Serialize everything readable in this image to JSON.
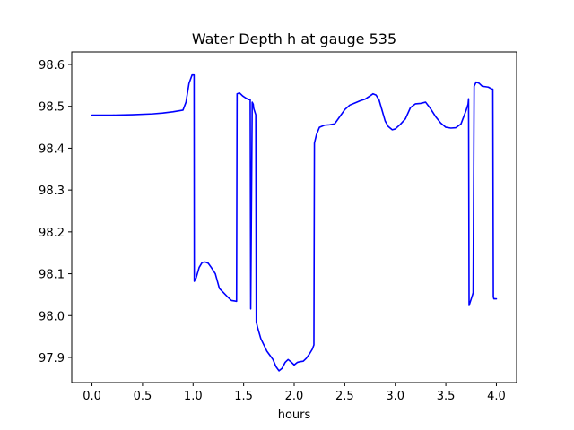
{
  "chart_data": {
    "type": "line",
    "title": "Water Depth h at gauge 535",
    "xlabel": "hours",
    "ylabel": "",
    "xlim": [
      -0.2,
      4.2
    ],
    "ylim": [
      97.84,
      98.63
    ],
    "xticks": [
      0.0,
      0.5,
      1.0,
      1.5,
      2.0,
      2.5,
      3.0,
      3.5,
      4.0
    ],
    "xtick_labels": [
      "0.0",
      "0.5",
      "1.0",
      "1.5",
      "2.0",
      "2.5",
      "3.0",
      "3.5",
      "4.0"
    ],
    "yticks": [
      97.9,
      98.0,
      98.1,
      98.2,
      98.3,
      98.4,
      98.5,
      98.6
    ],
    "ytick_labels": [
      "97.9",
      "98.0",
      "98.1",
      "98.2",
      "98.3",
      "98.4",
      "98.5",
      "98.6"
    ],
    "grid": false,
    "series": [
      {
        "color": "#0000ff",
        "x": [
          0.0,
          0.2,
          0.4,
          0.6,
          0.7,
          0.8,
          0.9,
          0.93,
          0.96,
          0.99,
          1.01,
          1.012,
          1.03,
          1.06,
          1.09,
          1.12,
          1.15,
          1.18,
          1.22,
          1.26,
          1.3,
          1.34,
          1.38,
          1.41,
          1.43,
          1.435,
          1.46,
          1.49,
          1.52,
          1.55,
          1.565,
          1.57,
          1.585,
          1.595,
          1.6,
          1.62,
          1.625,
          1.64,
          1.67,
          1.7,
          1.73,
          1.76,
          1.79,
          1.82,
          1.85,
          1.88,
          1.91,
          1.94,
          1.97,
          2.0,
          2.03,
          2.06,
          2.09,
          2.12,
          2.15,
          2.18,
          2.195,
          2.2,
          2.22,
          2.25,
          2.3,
          2.35,
          2.4,
          2.45,
          2.5,
          2.55,
          2.6,
          2.65,
          2.7,
          2.75,
          2.78,
          2.81,
          2.84,
          2.87,
          2.9,
          2.93,
          2.97,
          3.0,
          3.05,
          3.1,
          3.15,
          3.2,
          3.25,
          3.3,
          3.35,
          3.4,
          3.45,
          3.5,
          3.55,
          3.6,
          3.65,
          3.7,
          3.72,
          3.725,
          3.73,
          3.765,
          3.77,
          3.78,
          3.8,
          3.83,
          3.86,
          3.89,
          3.92,
          3.95,
          3.965,
          3.97,
          3.975,
          4.0
        ],
        "y": [
          98.479,
          98.479,
          98.48,
          98.482,
          98.484,
          98.487,
          98.491,
          98.51,
          98.555,
          98.575,
          98.575,
          98.082,
          98.09,
          98.115,
          98.127,
          98.128,
          98.125,
          98.115,
          98.1,
          98.065,
          98.055,
          98.045,
          98.036,
          98.035,
          98.034,
          98.53,
          98.532,
          98.525,
          98.52,
          98.516,
          98.516,
          98.016,
          98.51,
          98.505,
          98.495,
          98.48,
          97.985,
          97.97,
          97.945,
          97.93,
          97.915,
          97.905,
          97.895,
          97.878,
          97.868,
          97.874,
          97.888,
          97.895,
          97.889,
          97.882,
          97.888,
          97.89,
          97.891,
          97.898,
          97.908,
          97.92,
          97.93,
          98.412,
          98.432,
          98.45,
          98.455,
          98.456,
          98.458,
          98.475,
          98.492,
          98.503,
          98.508,
          98.513,
          98.517,
          98.525,
          98.53,
          98.527,
          98.515,
          98.49,
          98.465,
          98.452,
          98.444,
          98.446,
          98.457,
          98.47,
          98.497,
          98.506,
          98.507,
          98.51,
          98.494,
          98.475,
          98.46,
          98.45,
          98.448,
          98.449,
          98.458,
          98.49,
          98.505,
          98.518,
          98.024,
          98.05,
          98.055,
          98.548,
          98.558,
          98.555,
          98.548,
          98.547,
          98.546,
          98.542,
          98.541,
          98.045,
          98.04,
          98.04
        ]
      }
    ]
  }
}
